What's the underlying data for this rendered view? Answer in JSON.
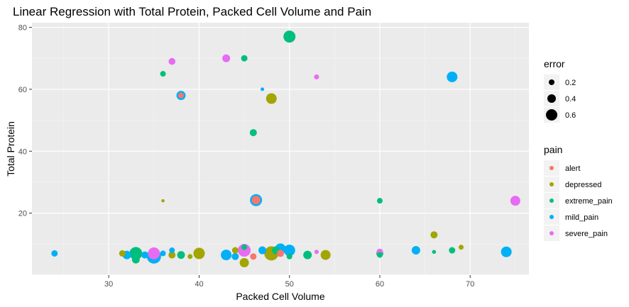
{
  "chart_data": {
    "type": "scatter",
    "title": "Linear Regression with Total Protein, Packed Cell Volume and Pain",
    "xlabel": "Packed Cell Volume",
    "ylabel": "Total Protein",
    "xlim": [
      21.5,
      76.5
    ],
    "ylim": [
      0,
      81.5
    ],
    "xticks": [
      30,
      40,
      50,
      60,
      70
    ],
    "yticks": [
      20,
      40,
      60,
      80
    ],
    "grid": true,
    "panel_background": "#ebebeb",
    "legend_position": "right",
    "size_legend": {
      "title": "error",
      "entries": [
        {
          "label": "0.2",
          "value": 0.2
        },
        {
          "label": "0.4",
          "value": 0.4
        },
        {
          "label": "0.6",
          "value": 0.6
        }
      ]
    },
    "color_legend": {
      "title": "pain",
      "entries": [
        {
          "label": "alert",
          "color": "#F8766D"
        },
        {
          "label": "depressed",
          "color": "#A3A500"
        },
        {
          "label": "extreme_pain",
          "color": "#00BF7D"
        },
        {
          "label": "mild_pain",
          "color": "#00B0F6"
        },
        {
          "label": "severe_pain",
          "color": "#E76BF3"
        }
      ]
    },
    "points": [
      {
        "x": 50,
        "y": 77,
        "pain": "extreme_pain",
        "error": 0.65
      },
      {
        "x": 45,
        "y": 70,
        "pain": "extreme_pain",
        "error": 0.25
      },
      {
        "x": 43,
        "y": 70,
        "pain": "severe_pain",
        "error": 0.35
      },
      {
        "x": 37,
        "y": 69,
        "pain": "severe_pain",
        "error": 0.28
      },
      {
        "x": 36,
        "y": 65,
        "pain": "extreme_pain",
        "error": 0.2
      },
      {
        "x": 53,
        "y": 64,
        "pain": "severe_pain",
        "error": 0.15
      },
      {
        "x": 68,
        "y": 64,
        "pain": "mild_pain",
        "error": 0.55
      },
      {
        "x": 47,
        "y": 60,
        "pain": "mild_pain",
        "error": 0.05
      },
      {
        "x": 38,
        "y": 58,
        "pain": "mild_pain",
        "error": 0.45
      },
      {
        "x": 38,
        "y": 58,
        "pain": "alert",
        "error": 0.2
      },
      {
        "x": 48,
        "y": 57,
        "pain": "depressed",
        "error": 0.55
      },
      {
        "x": 46,
        "y": 46,
        "pain": "extreme_pain",
        "error": 0.3
      },
      {
        "x": 36,
        "y": 24,
        "pain": "depressed",
        "error": 0.03
      },
      {
        "x": 46.3,
        "y": 24.2,
        "pain": "mild_pain",
        "error": 0.65
      },
      {
        "x": 46.3,
        "y": 24.2,
        "pain": "alert",
        "error": 0.4
      },
      {
        "x": 60,
        "y": 24,
        "pain": "extreme_pain",
        "error": 0.2
      },
      {
        "x": 75,
        "y": 24,
        "pain": "severe_pain",
        "error": 0.5
      },
      {
        "x": 66,
        "y": 13,
        "pain": "depressed",
        "error": 0.3
      },
      {
        "x": 24,
        "y": 7,
        "pain": "mild_pain",
        "error": 0.25
      },
      {
        "x": 31.5,
        "y": 7,
        "pain": "depressed",
        "error": 0.25
      },
      {
        "x": 32,
        "y": 6.5,
        "pain": "mild_pain",
        "error": 0.4
      },
      {
        "x": 33,
        "y": 7,
        "pain": "extreme_pain",
        "error": 0.7
      },
      {
        "x": 33,
        "y": 5,
        "pain": "extreme_pain",
        "error": 0.35
      },
      {
        "x": 34,
        "y": 6.5,
        "pain": "mild_pain",
        "error": 0.3
      },
      {
        "x": 35,
        "y": 6,
        "pain": "mild_pain",
        "error": 0.8
      },
      {
        "x": 35,
        "y": 7,
        "pain": "severe_pain",
        "error": 0.65
      },
      {
        "x": 36,
        "y": 7,
        "pain": "mild_pain",
        "error": 0.2
      },
      {
        "x": 37,
        "y": 6.5,
        "pain": "depressed",
        "error": 0.3
      },
      {
        "x": 37,
        "y": 8,
        "pain": "mild_pain",
        "error": 0.2
      },
      {
        "x": 38,
        "y": 6.5,
        "pain": "extreme_pain",
        "error": 0.35
      },
      {
        "x": 39,
        "y": 6,
        "pain": "depressed",
        "error": 0.15
      },
      {
        "x": 40,
        "y": 7,
        "pain": "depressed",
        "error": 0.6
      },
      {
        "x": 43,
        "y": 6.5,
        "pain": "mild_pain",
        "error": 0.55
      },
      {
        "x": 44,
        "y": 8,
        "pain": "depressed",
        "error": 0.25
      },
      {
        "x": 44,
        "y": 6,
        "pain": "mild_pain",
        "error": 0.3
      },
      {
        "x": 45,
        "y": 8,
        "pain": "severe_pain",
        "error": 0.7
      },
      {
        "x": 45,
        "y": 4,
        "pain": "depressed",
        "error": 0.45
      },
      {
        "x": 45,
        "y": 9,
        "pain": "extreme_pain",
        "error": 0.2
      },
      {
        "x": 46,
        "y": 6,
        "pain": "alert",
        "error": 0.25
      },
      {
        "x": 47,
        "y": 8,
        "pain": "mild_pain",
        "error": 0.35
      },
      {
        "x": 48,
        "y": 7,
        "pain": "depressed",
        "error": 0.8
      },
      {
        "x": 48.5,
        "y": 8,
        "pain": "extreme_pain",
        "error": 0.35
      },
      {
        "x": 49,
        "y": 8.5,
        "pain": "mild_pain",
        "error": 0.55
      },
      {
        "x": 49,
        "y": 7,
        "pain": "alert",
        "error": 0.3
      },
      {
        "x": 50,
        "y": 8,
        "pain": "mild_pain",
        "error": 0.6
      },
      {
        "x": 50,
        "y": 6,
        "pain": "extreme_pain",
        "error": 0.2
      },
      {
        "x": 52,
        "y": 6.5,
        "pain": "extreme_pain",
        "error": 0.4
      },
      {
        "x": 53,
        "y": 7.5,
        "pain": "severe_pain",
        "error": 0.1
      },
      {
        "x": 54,
        "y": 6.5,
        "pain": "depressed",
        "error": 0.5
      },
      {
        "x": 60,
        "y": 7,
        "pain": "extreme_pain",
        "error": 0.3
      },
      {
        "x": 60,
        "y": 7.5,
        "pain": "severe_pain",
        "error": 0.25
      },
      {
        "x": 60,
        "y": 6.5,
        "pain": "extreme_pain",
        "error": 0.2
      },
      {
        "x": 64,
        "y": 8,
        "pain": "mild_pain",
        "error": 0.4
      },
      {
        "x": 66,
        "y": 7.5,
        "pain": "extreme_pain",
        "error": 0.08
      },
      {
        "x": 68,
        "y": 8,
        "pain": "extreme_pain",
        "error": 0.25
      },
      {
        "x": 69,
        "y": 9,
        "pain": "depressed",
        "error": 0.15
      },
      {
        "x": 74,
        "y": 7.5,
        "pain": "mild_pain",
        "error": 0.55
      }
    ]
  }
}
